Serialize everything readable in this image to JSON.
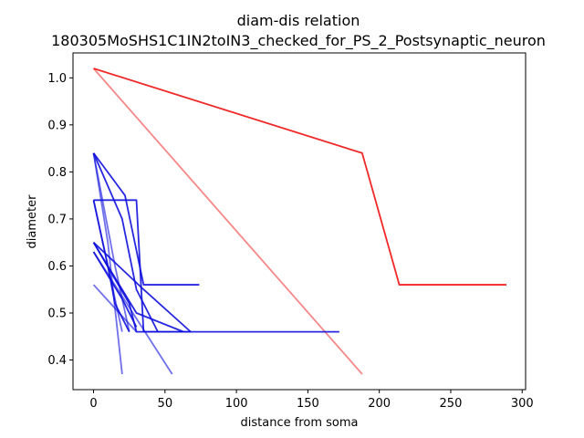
{
  "chart_data": {
    "type": "line",
    "title": "diam-dis relation",
    "subtitle": "180305MoSHS1C1IN2toIN3_checked_for_PS_2_Postsynaptic_neuron",
    "xlabel": "distance from soma",
    "ylabel": "diameter",
    "xlim": [
      -14.4,
      302.4
    ],
    "ylim": [
      0.337,
      1.053
    ],
    "xticks": [
      0,
      50,
      100,
      150,
      200,
      250,
      300
    ],
    "yticks": [
      0.4,
      0.5,
      0.6,
      0.7,
      0.8,
      0.9,
      1.0
    ],
    "xtick_labels": [
      "0",
      "50",
      "100",
      "150",
      "200",
      "250",
      "300"
    ],
    "ytick_labels": [
      "0.4",
      "0.5",
      "0.6",
      "0.7",
      "0.8",
      "0.9",
      "1.0"
    ],
    "grid": false,
    "legend": "none",
    "series": [
      {
        "color": "#ee1111",
        "opacity": 0.9,
        "x": [
          0,
          188,
          214,
          289
        ],
        "y": [
          1.02,
          0.84,
          0.56,
          0.56
        ]
      },
      {
        "color": "#ee1111",
        "opacity": 0.5,
        "x": [
          0,
          188
        ],
        "y": [
          1.02,
          0.37
        ]
      },
      {
        "color": "#1111dd",
        "opacity": 0.9,
        "x": [
          0,
          22,
          35,
          74
        ],
        "y": [
          0.84,
          0.75,
          0.56,
          0.56
        ]
      },
      {
        "color": "#1111dd",
        "opacity": 0.9,
        "x": [
          0,
          20,
          30,
          45
        ],
        "y": [
          0.84,
          0.7,
          0.55,
          0.46
        ]
      },
      {
        "color": "#1111dd",
        "opacity": 0.6,
        "x": [
          0,
          10,
          20
        ],
        "y": [
          0.84,
          0.65,
          0.37
        ]
      },
      {
        "color": "#1111dd",
        "opacity": 0.6,
        "x": [
          0,
          15,
          25
        ],
        "y": [
          0.84,
          0.6,
          0.46
        ]
      },
      {
        "color": "#1111dd",
        "opacity": 0.9,
        "x": [
          0,
          30,
          35,
          68
        ],
        "y": [
          0.74,
          0.74,
          0.46,
          0.46
        ]
      },
      {
        "color": "#1111dd",
        "opacity": 0.6,
        "x": [
          0,
          20
        ],
        "y": [
          0.74,
          0.46
        ]
      },
      {
        "color": "#1111dd",
        "opacity": 0.9,
        "x": [
          0,
          10,
          15,
          25
        ],
        "y": [
          0.74,
          0.6,
          0.52,
          0.46
        ]
      },
      {
        "color": "#1111dd",
        "opacity": 0.9,
        "x": [
          0,
          25,
          30,
          172
        ],
        "y": [
          0.65,
          0.52,
          0.46,
          0.46
        ]
      },
      {
        "color": "#1111dd",
        "opacity": 0.9,
        "x": [
          0,
          20,
          30,
          63
        ],
        "y": [
          0.65,
          0.55,
          0.5,
          0.46
        ]
      },
      {
        "color": "#1111dd",
        "opacity": 0.9,
        "x": [
          0,
          35,
          68
        ],
        "y": [
          0.65,
          0.55,
          0.46
        ]
      },
      {
        "color": "#1111dd",
        "opacity": 0.6,
        "x": [
          0,
          55
        ],
        "y": [
          0.63,
          0.37
        ]
      },
      {
        "color": "#1111dd",
        "opacity": 0.9,
        "x": [
          0,
          20,
          30
        ],
        "y": [
          0.63,
          0.53,
          0.47
        ]
      },
      {
        "color": "#1111dd",
        "opacity": 0.6,
        "x": [
          0,
          30
        ],
        "y": [
          0.56,
          0.46
        ]
      }
    ]
  }
}
